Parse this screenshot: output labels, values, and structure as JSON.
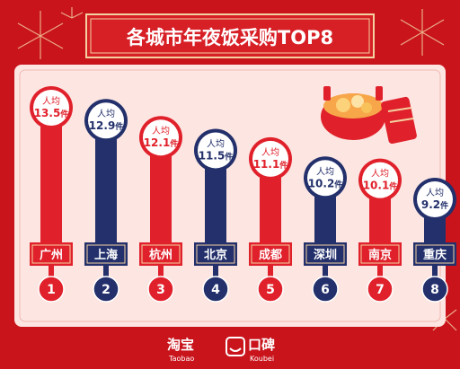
{
  "title": "各城市年夜饭采购TOP8",
  "colors": {
    "background": "#c9141c",
    "panel": "#fde6e2",
    "red": "#e0212b",
    "navy": "#23306b",
    "gold": "#f3d2a0",
    "bubble_bg": "#ffffff"
  },
  "chart_data": {
    "type": "bar",
    "title": "各城市年夜饭采购TOP8",
    "categories": [
      "广州",
      "上海",
      "杭州",
      "北京",
      "成都",
      "深圳",
      "南京",
      "重庆"
    ],
    "ranks": [
      "1",
      "2",
      "3",
      "4",
      "5",
      "6",
      "7",
      "8"
    ],
    "values": [
      13.5,
      12.9,
      12.1,
      11.5,
      11.1,
      10.2,
      10.1,
      9.2
    ],
    "value_prefix": "人均",
    "value_unit": "件",
    "bar_colors": [
      "#e0212b",
      "#23306b",
      "#e0212b",
      "#23306b",
      "#e0212b",
      "#23306b",
      "#e0212b",
      "#23306b"
    ],
    "ylim": [
      9.2,
      13.5
    ]
  },
  "brands": {
    "taobao_name": "淘宝",
    "taobao_sub": "Taobao",
    "koubei_name": "口碑",
    "koubei_sub": "Koubei"
  }
}
